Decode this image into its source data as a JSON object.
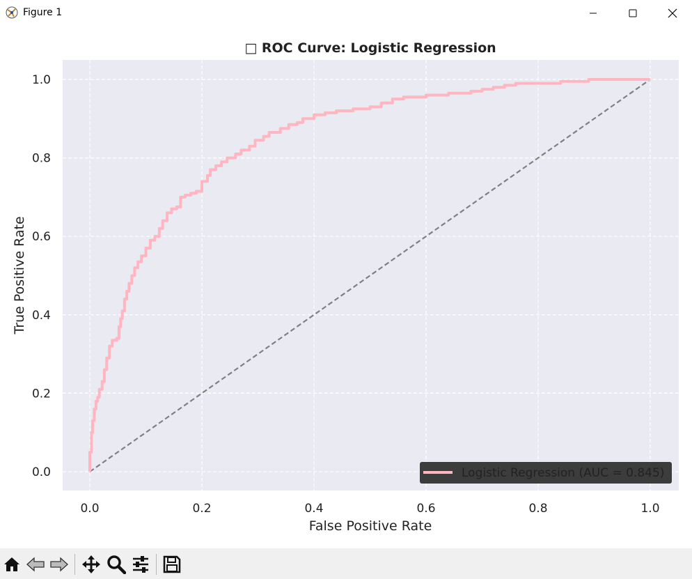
{
  "window": {
    "title": "Figure 1"
  },
  "toolbar": {
    "buttons": [
      "home-icon",
      "back-icon",
      "forward-icon",
      "pan-icon",
      "zoom-icon",
      "configure-icon",
      "save-icon"
    ]
  },
  "chart_data": {
    "type": "line",
    "title": "□ ROC Curve: Logistic Regression",
    "xlabel": "False Positive Rate",
    "ylabel": "True Positive Rate",
    "xlim": [
      -0.05,
      1.05
    ],
    "ylim": [
      -0.05,
      1.05
    ],
    "xticks": [
      "0.0",
      "0.2",
      "0.4",
      "0.6",
      "0.8",
      "1.0"
    ],
    "yticks": [
      "0.0",
      "0.2",
      "0.4",
      "0.6",
      "0.8",
      "1.0"
    ],
    "grid": true,
    "legend_position": "lower-right",
    "background": "#eaeaf2",
    "series": [
      {
        "name": "Logistic Regression (AUC = 0.845)",
        "color": "#ffb6c1",
        "style": "solid",
        "x": [
          0.0,
          0.0,
          0.003,
          0.005,
          0.008,
          0.011,
          0.014,
          0.017,
          0.022,
          0.026,
          0.03,
          0.035,
          0.04,
          0.048,
          0.052,
          0.055,
          0.058,
          0.062,
          0.066,
          0.07,
          0.075,
          0.08,
          0.086,
          0.092,
          0.1,
          0.108,
          0.116,
          0.124,
          0.13,
          0.138,
          0.146,
          0.155,
          0.162,
          0.17,
          0.18,
          0.19,
          0.2,
          0.21,
          0.215,
          0.225,
          0.235,
          0.245,
          0.26,
          0.27,
          0.285,
          0.295,
          0.31,
          0.32,
          0.34,
          0.355,
          0.37,
          0.38,
          0.4,
          0.42,
          0.44,
          0.47,
          0.5,
          0.52,
          0.54,
          0.56,
          0.6,
          0.64,
          0.68,
          0.7,
          0.72,
          0.74,
          0.76,
          0.8,
          0.84,
          0.86,
          0.89,
          0.92,
          0.95,
          1.0
        ],
        "y": [
          0.0,
          0.05,
          0.1,
          0.13,
          0.16,
          0.18,
          0.19,
          0.21,
          0.23,
          0.26,
          0.29,
          0.32,
          0.335,
          0.34,
          0.37,
          0.39,
          0.41,
          0.44,
          0.46,
          0.48,
          0.5,
          0.52,
          0.535,
          0.55,
          0.57,
          0.59,
          0.6,
          0.62,
          0.64,
          0.66,
          0.67,
          0.675,
          0.7,
          0.705,
          0.71,
          0.715,
          0.74,
          0.755,
          0.77,
          0.78,
          0.79,
          0.8,
          0.81,
          0.82,
          0.83,
          0.845,
          0.855,
          0.865,
          0.875,
          0.885,
          0.89,
          0.9,
          0.91,
          0.915,
          0.92,
          0.925,
          0.93,
          0.94,
          0.95,
          0.955,
          0.96,
          0.965,
          0.97,
          0.975,
          0.98,
          0.985,
          0.99,
          0.99,
          0.995,
          0.995,
          1.0,
          1.0,
          1.0,
          1.0
        ]
      },
      {
        "color": "#808080",
        "style": "dashed",
        "x": [
          0.0,
          1.0
        ],
        "y": [
          0.0,
          1.0
        ]
      }
    ]
  }
}
